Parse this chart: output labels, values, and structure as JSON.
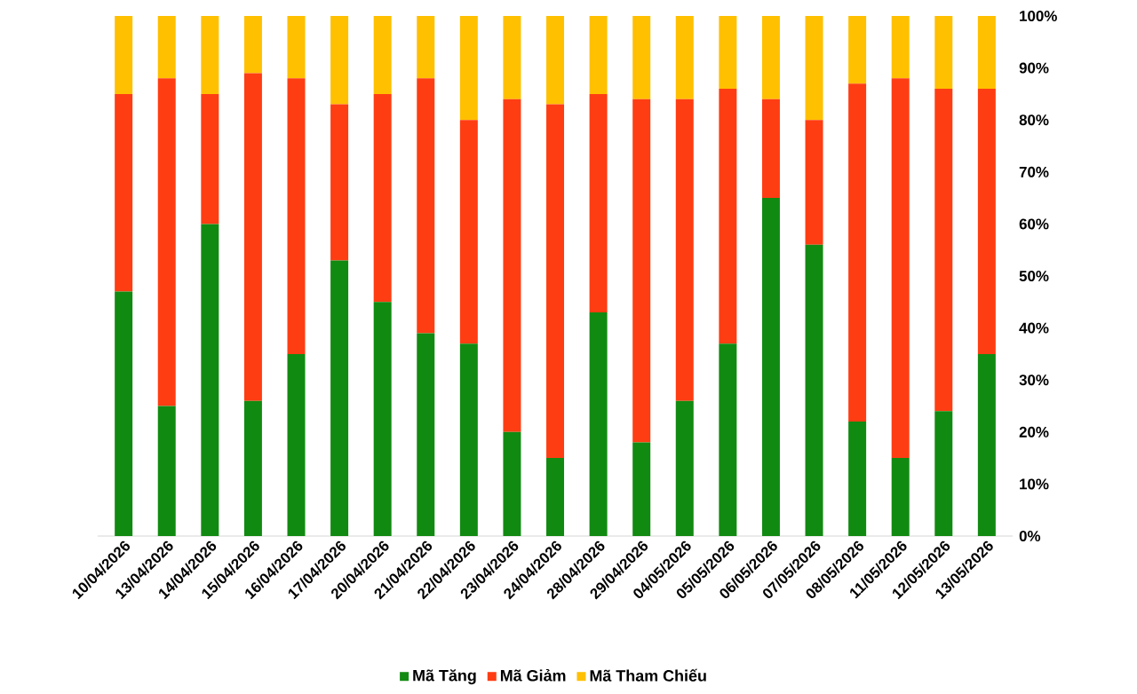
{
  "chart_data": {
    "type": "bar",
    "stacked": true,
    "categories": [
      "10/04/2026",
      "13/04/2026",
      "14/04/2026",
      "15/04/2026",
      "16/04/2026",
      "17/04/2026",
      "20/04/2026",
      "21/04/2026",
      "22/04/2026",
      "23/04/2026",
      "24/04/2026",
      "28/04/2026",
      "29/04/2026",
      "04/05/2026",
      "05/05/2026",
      "06/05/2026",
      "07/05/2026",
      "08/05/2026",
      "11/05/2026",
      "12/05/2026",
      "13/05/2026"
    ],
    "series": [
      {
        "name": "Mã Tăng",
        "color": "#118a11",
        "values": [
          47,
          25,
          60,
          26,
          35,
          53,
          45,
          39,
          37,
          20,
          15,
          43,
          18,
          26,
          37,
          65,
          56,
          22,
          15,
          24,
          35
        ]
      },
      {
        "name": "Mã Giảm",
        "color": "#ff3d12",
        "values": [
          38,
          63,
          25,
          63,
          53,
          30,
          40,
          49,
          43,
          64,
          68,
          42,
          66,
          58,
          49,
          19,
          24,
          65,
          73,
          62,
          51
        ]
      },
      {
        "name": "Mã Tham Chiếu",
        "color": "#ffc000",
        "values": [
          15,
          12,
          15,
          11,
          12,
          17,
          15,
          12,
          20,
          16,
          17,
          15,
          16,
          16,
          14,
          16,
          20,
          13,
          12,
          14,
          14
        ]
      }
    ],
    "ylim": [
      0,
      100
    ],
    "yticks": [
      {
        "value": 0,
        "label": "0%"
      },
      {
        "value": 10,
        "label": "10%"
      },
      {
        "value": 20,
        "label": "20%"
      },
      {
        "value": 30,
        "label": "30%"
      },
      {
        "value": 40,
        "label": "40%"
      },
      {
        "value": 50,
        "label": "50%"
      },
      {
        "value": 60,
        "label": "60%"
      },
      {
        "value": 70,
        "label": "70%"
      },
      {
        "value": 80,
        "label": "80%"
      },
      {
        "value": 90,
        "label": "90%"
      },
      {
        "value": 100,
        "label": "100%"
      }
    ],
    "legend": "bottom"
  }
}
